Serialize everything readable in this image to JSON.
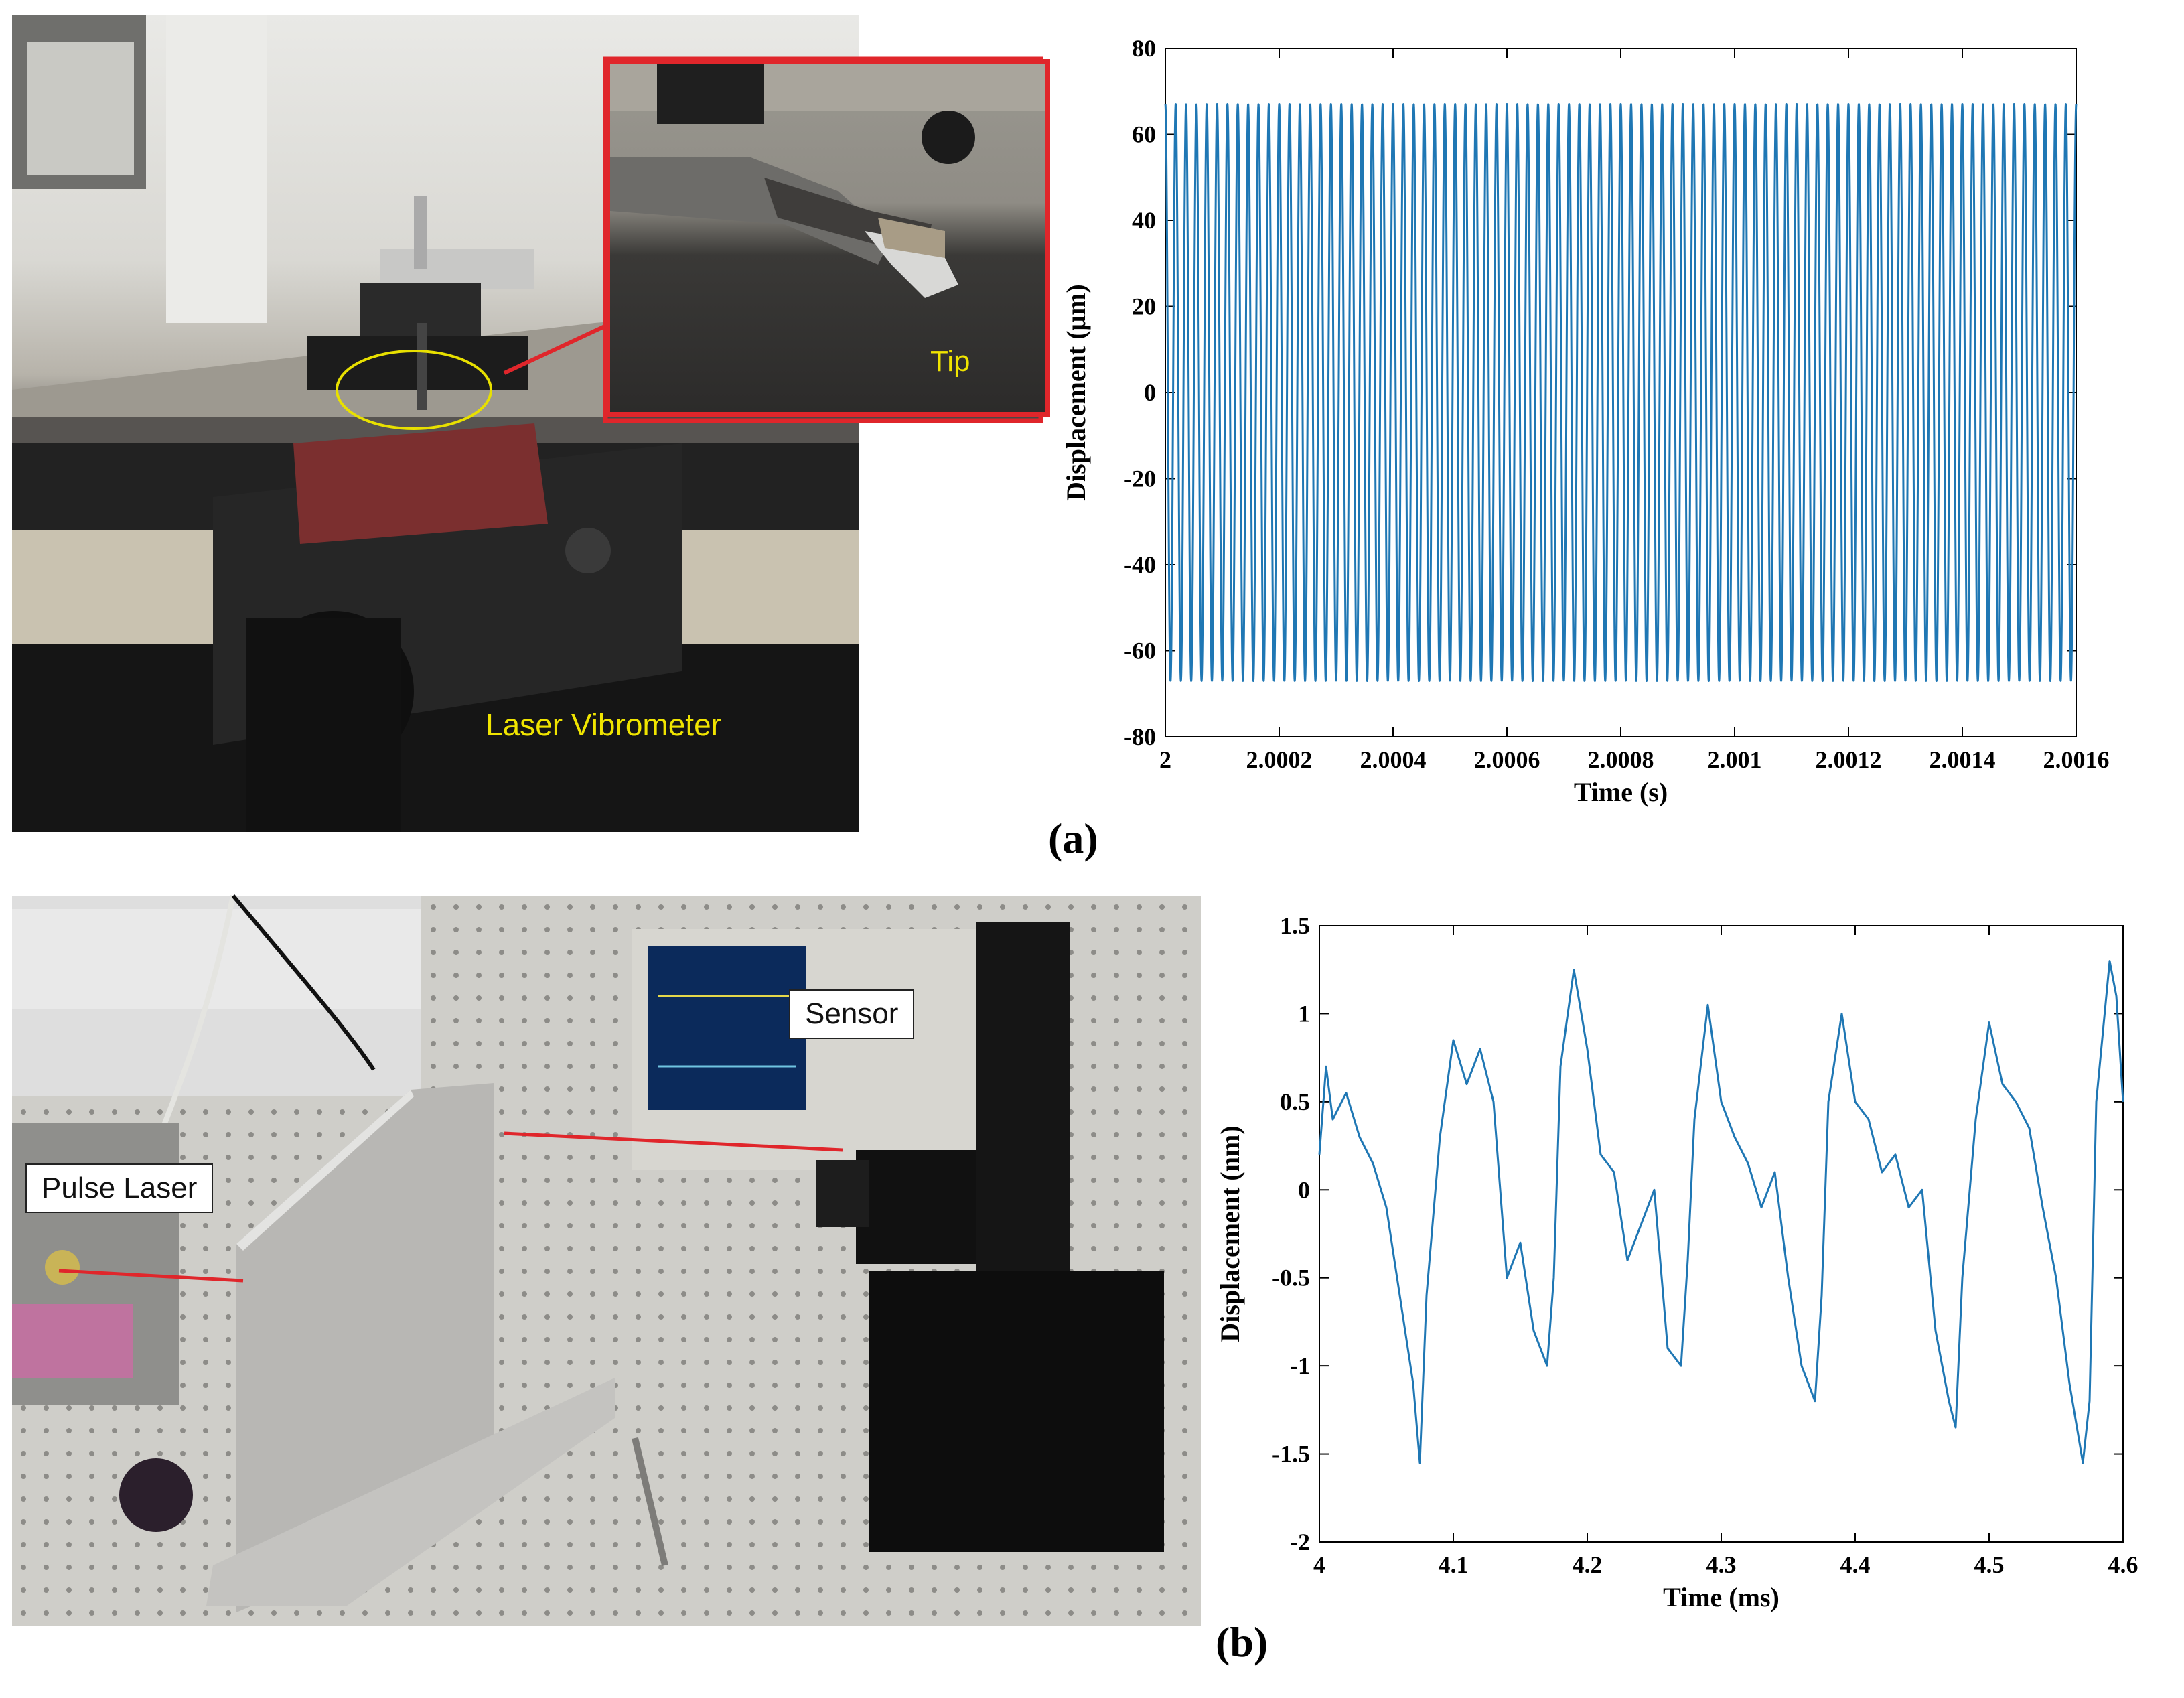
{
  "panel_a": {
    "tag": "(a)",
    "photo_labels": {
      "tip": "Tip",
      "vibrometer": "Laser Vibrometer"
    }
  },
  "panel_b": {
    "tag": "(b)",
    "photo_labels": {
      "sensor": "Sensor",
      "pulse_laser": "Pulse Laser"
    }
  },
  "colors": {
    "series": "#1f77b4",
    "callout_red": "#e0262b",
    "highlight_yellow": "#e8e000"
  },
  "chart_data": [
    {
      "type": "line",
      "title": "",
      "xlabel": "Time (s)",
      "ylabel": "Displacement (μm)",
      "xlim": [
        2,
        2.0016
      ],
      "ylim": [
        -80,
        80
      ],
      "xticks": [
        2,
        2.0002,
        2.0004,
        2.0006,
        2.0008,
        2.001,
        2.0012,
        2.0014,
        2.0016
      ],
      "xtick_labels": [
        "2",
        "2.0002",
        "2.0004",
        "2.0006",
        "2.0008",
        "2.001",
        "2.0012",
        "2.0014",
        "2.0016"
      ],
      "yticks": [
        -80,
        -60,
        -40,
        -20,
        0,
        20,
        40,
        60,
        80
      ],
      "ytick_labels": [
        "-80",
        "-60",
        "-40",
        "-20",
        "0",
        "20",
        "40",
        "60",
        "80"
      ],
      "grid": false,
      "series": [
        {
          "amplitude": 67,
          "frequency_hz": 55000,
          "x_start": 2,
          "x_end": 2.0016
        }
      ]
    },
    {
      "type": "line",
      "title": "",
      "xlabel": "Time (ms)",
      "ylabel": "Displacement (nm)",
      "xlim": [
        4,
        4.6
      ],
      "ylim": [
        -2,
        1.5
      ],
      "xticks": [
        4,
        4.1,
        4.2,
        4.3,
        4.4,
        4.5,
        4.6
      ],
      "xtick_labels": [
        "4",
        "4.1",
        "4.2",
        "4.3",
        "4.4",
        "4.5",
        "4.6"
      ],
      "yticks": [
        -2,
        -1.5,
        -1,
        -0.5,
        0,
        0.5,
        1,
        1.5
      ],
      "ytick_labels": [
        "-2",
        "-1.5",
        "-1",
        "-0.5",
        "0",
        "0.5",
        "1",
        "1.5"
      ],
      "grid": false,
      "series": [
        {
          "x": [
            4.0,
            4.005,
            4.01,
            4.02,
            4.03,
            4.04,
            4.05,
            4.06,
            4.07,
            4.075,
            4.08,
            4.09,
            4.1,
            4.11,
            4.12,
            4.13,
            4.14,
            4.15,
            4.16,
            4.17,
            4.175,
            4.18,
            4.19,
            4.2,
            4.21,
            4.22,
            4.23,
            4.24,
            4.25,
            4.26,
            4.27,
            4.275,
            4.28,
            4.29,
            4.3,
            4.31,
            4.32,
            4.33,
            4.34,
            4.35,
            4.36,
            4.37,
            4.375,
            4.38,
            4.39,
            4.4,
            4.41,
            4.42,
            4.43,
            4.44,
            4.45,
            4.46,
            4.47,
            4.475,
            4.48,
            4.49,
            4.5,
            4.51,
            4.52,
            4.53,
            4.54,
            4.55,
            4.56,
            4.57,
            4.575,
            4.58,
            4.59,
            4.595,
            4.6
          ],
          "y": [
            0.2,
            0.7,
            0.4,
            0.55,
            0.3,
            0.15,
            -0.1,
            -0.6,
            -1.1,
            -1.55,
            -0.6,
            0.3,
            0.85,
            0.6,
            0.8,
            0.5,
            -0.5,
            -0.3,
            -0.8,
            -1.0,
            -0.5,
            0.7,
            1.25,
            0.8,
            0.2,
            0.1,
            -0.4,
            -0.2,
            0.0,
            -0.9,
            -1.0,
            -0.4,
            0.4,
            1.05,
            0.5,
            0.3,
            0.15,
            -0.1,
            0.1,
            -0.5,
            -1.0,
            -1.2,
            -0.6,
            0.5,
            1.0,
            0.5,
            0.4,
            0.1,
            0.2,
            -0.1,
            0.0,
            -0.8,
            -1.2,
            -1.35,
            -0.5,
            0.4,
            0.95,
            0.6,
            0.5,
            0.35,
            -0.1,
            -0.5,
            -1.1,
            -1.55,
            -1.2,
            0.5,
            1.3,
            1.1,
            0.5
          ]
        }
      ]
    }
  ]
}
